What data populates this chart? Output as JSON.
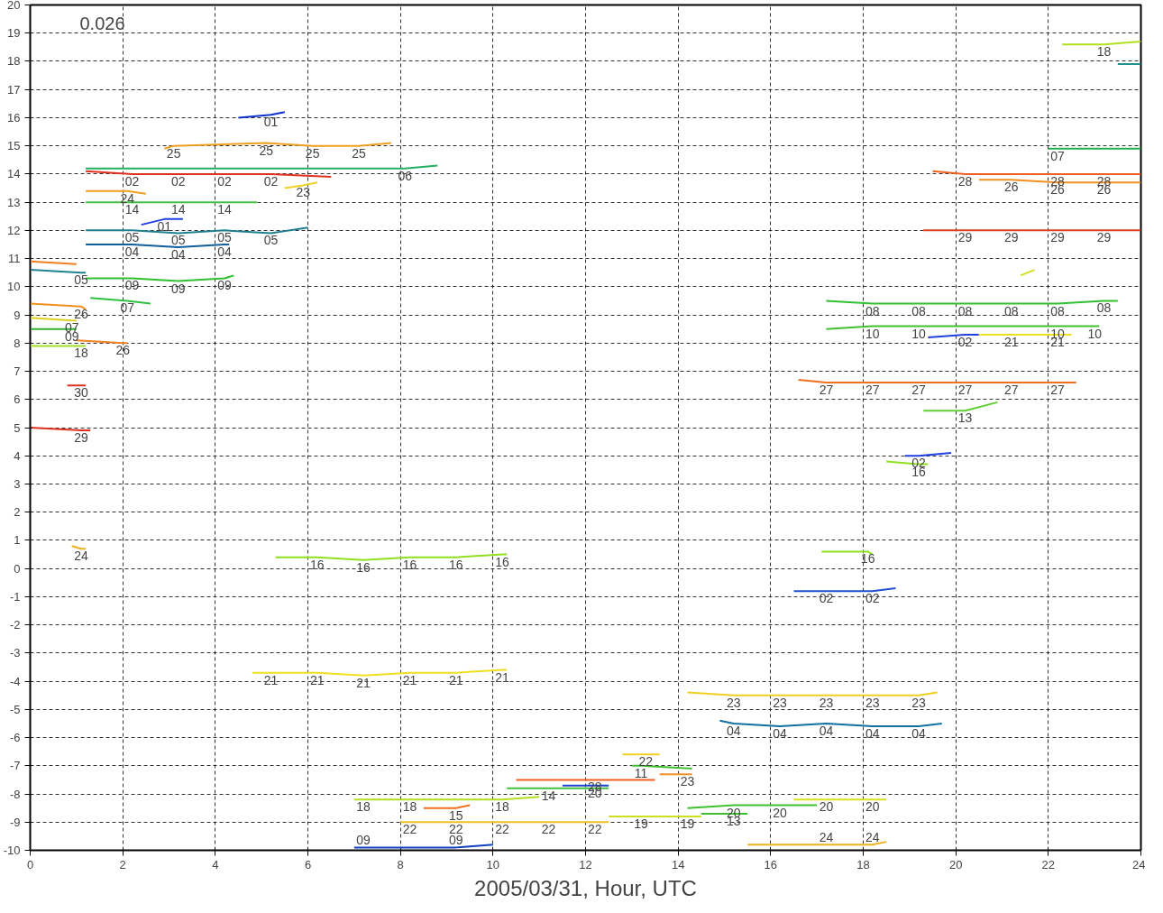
{
  "chart_data": {
    "type": "line",
    "xlabel": "2005/03/31, Hour, UTC",
    "annotations": [
      "0.026"
    ],
    "xlim": [
      0,
      24
    ],
    "ylim": [
      -10,
      20
    ],
    "xticks": [
      0,
      2,
      4,
      6,
      8,
      10,
      12,
      14,
      16,
      18,
      20,
      22,
      24
    ],
    "yticks": [
      -10,
      -9,
      -8,
      -7,
      -6,
      -5,
      -4,
      -3,
      -2,
      -1,
      0,
      1,
      2,
      3,
      4,
      5,
      6,
      7,
      8,
      9,
      10,
      11,
      12,
      13,
      14,
      15,
      16,
      17,
      18,
      19,
      20
    ],
    "grid": true,
    "line_style": "solid",
    "marker": "none",
    "series": [
      {
        "name": "01",
        "color": "#1030d0",
        "x": [
          4.5,
          5.2,
          5.5
        ],
        "values": [
          16.0,
          16.1,
          16.2
        ]
      },
      {
        "name": "25",
        "color": "#f0a020",
        "x": [
          2.9,
          3.1,
          5.1,
          6.1,
          7.1,
          7.8
        ],
        "values": [
          14.9,
          15.0,
          15.1,
          15.0,
          15.0,
          15.1
        ]
      },
      {
        "name": "06",
        "color": "#20b060",
        "x": [
          1.2,
          8.1,
          8.8
        ],
        "values": [
          14.2,
          14.2,
          14.3
        ]
      },
      {
        "name": "02",
        "color": "#e03020",
        "x": [
          1.2,
          2.2,
          3.2,
          4.2,
          5.2,
          6.5
        ],
        "values": [
          14.1,
          14.0,
          14.0,
          14.0,
          14.0,
          13.9
        ]
      },
      {
        "name": "23",
        "color": "#f0d020",
        "x": [
          5.5,
          5.9,
          6.2
        ],
        "values": [
          13.5,
          13.6,
          13.7
        ]
      },
      {
        "name": "24",
        "color": "#f0a020",
        "x": [
          1.2,
          2.1,
          2.5
        ],
        "values": [
          13.4,
          13.4,
          13.3
        ]
      },
      {
        "name": "14",
        "color": "#40c040",
        "x": [
          1.2,
          2.2,
          3.2,
          4.2,
          4.9
        ],
        "values": [
          13.0,
          13.0,
          13.0,
          13.0,
          13.0
        ]
      },
      {
        "name": "01",
        "color": "#2040e0",
        "x": [
          2.4,
          2.9,
          3.3
        ],
        "values": [
          12.2,
          12.4,
          12.4
        ]
      },
      {
        "name": "05",
        "color": "#208090",
        "x": [
          1.2,
          2.2,
          3.2,
          4.2,
          5.2,
          6.0
        ],
        "values": [
          12.0,
          12.0,
          11.9,
          12.0,
          11.9,
          12.1
        ]
      },
      {
        "name": "04",
        "color": "#1060a0",
        "x": [
          1.2,
          2.2,
          3.2,
          4.2,
          4.3
        ],
        "values": [
          11.5,
          11.5,
          11.4,
          11.5,
          11.5
        ]
      },
      {
        "name": null,
        "color": "#f08020",
        "x": [
          0,
          1.0
        ],
        "values": [
          10.9,
          10.8
        ]
      },
      {
        "name": "05",
        "color": "#208090",
        "x": [
          0,
          1.1,
          1.2
        ],
        "values": [
          10.6,
          10.5,
          10.5
        ]
      },
      {
        "name": "09",
        "color": "#30c030",
        "x": [
          1.2,
          2.2,
          3.2,
          4.2,
          4.4
        ],
        "values": [
          10.3,
          10.3,
          10.2,
          10.3,
          10.4
        ]
      },
      {
        "name": "07",
        "color": "#30c040",
        "x": [
          1.3,
          2.1,
          2.6
        ],
        "values": [
          9.6,
          9.5,
          9.4
        ]
      },
      {
        "name": "26",
        "color": "#f09020",
        "x": [
          0,
          1.1,
          1.2
        ],
        "values": [
          9.4,
          9.3,
          9.2
        ]
      },
      {
        "name": "07",
        "color": "#e0d020",
        "x": [
          0,
          0.9,
          1.0
        ],
        "values": [
          8.9,
          8.8,
          8.8
        ]
      },
      {
        "name": "09",
        "color": "#30b030",
        "x": [
          0,
          0.9,
          1.0
        ],
        "values": [
          8.5,
          8.5,
          8.5
        ]
      },
      {
        "name": "26",
        "color": "#f08020",
        "x": [
          1.0,
          2.0,
          2.1
        ],
        "values": [
          8.1,
          8.0,
          8.0
        ]
      },
      {
        "name": "18",
        "color": "#a0e020",
        "x": [
          0,
          1.1,
          1.2
        ],
        "values": [
          7.9,
          7.9,
          7.9
        ]
      },
      {
        "name": "30",
        "color": "#e03020",
        "x": [
          0.8,
          1.1,
          1.2
        ],
        "values": [
          6.5,
          6.5,
          6.5
        ]
      },
      {
        "name": "29",
        "color": "#e03020",
        "x": [
          0,
          1.1,
          1.3
        ],
        "values": [
          5.0,
          4.9,
          4.9
        ]
      },
      {
        "name": "24",
        "color": "#f0b020",
        "x": [
          0.9,
          1.1,
          1.2
        ],
        "values": [
          0.8,
          0.7,
          0.7
        ]
      },
      {
        "name": "16",
        "color": "#90e020",
        "x": [
          5.3,
          6.2,
          7.2,
          8.2,
          9.2,
          10.2,
          10.3
        ],
        "values": [
          0.4,
          0.4,
          0.3,
          0.4,
          0.4,
          0.5,
          0.5
        ]
      },
      {
        "name": "21",
        "color": "#f0e020",
        "x": [
          4.8,
          5.2,
          6.2,
          7.2,
          8.2,
          9.2,
          10.2,
          10.3
        ],
        "values": [
          -3.7,
          -3.7,
          -3.7,
          -3.8,
          -3.7,
          -3.7,
          -3.6,
          -3.6
        ]
      },
      {
        "name": "18",
        "color": "#b0e020",
        "x": [
          22.3,
          23.2,
          24
        ],
        "values": [
          18.6,
          18.6,
          18.7
        ]
      },
      {
        "name": null,
        "color": "#209090",
        "x": [
          23.5,
          24
        ],
        "values": [
          17.9,
          17.9
        ]
      },
      {
        "name": "07",
        "color": "#20b050",
        "x": [
          22.0,
          22.2,
          24
        ],
        "values": [
          14.9,
          14.9,
          14.9
        ]
      },
      {
        "name": "28",
        "color": "#f06020",
        "x": [
          19.5,
          20.2,
          22.2,
          23.2,
          24
        ],
        "values": [
          14.1,
          14.0,
          14.0,
          14.0,
          14.0
        ]
      },
      {
        "name": "26",
        "color": "#f09020",
        "x": [
          20.5,
          21.2,
          22.2,
          23.2,
          24
        ],
        "values": [
          13.8,
          13.8,
          13.7,
          13.7,
          13.7
        ]
      },
      {
        "name": "29",
        "color": "#e04020",
        "x": [
          19.3,
          20.2,
          21.2,
          22.2,
          23.2,
          24
        ],
        "values": [
          12.0,
          12.0,
          12.0,
          12.0,
          12.0,
          12.0
        ]
      },
      {
        "name": null,
        "color": "#d0e020",
        "x": [
          21.4,
          21.7
        ],
        "values": [
          10.4,
          10.6
        ]
      },
      {
        "name": "08",
        "color": "#30c030",
        "x": [
          17.2,
          18.2,
          19.2,
          20.2,
          21.2,
          22.2,
          23.2,
          23.5
        ],
        "values": [
          9.5,
          9.4,
          9.4,
          9.4,
          9.4,
          9.4,
          9.5,
          9.5
        ]
      },
      {
        "name": "10",
        "color": "#40c030",
        "x": [
          17.2,
          18.2,
          19.2,
          22.2,
          23.0,
          23.1
        ],
        "values": [
          8.5,
          8.6,
          8.6,
          8.6,
          8.6,
          8.6
        ]
      },
      {
        "name": "02",
        "color": "#2040e0",
        "x": [
          19.4,
          20.2,
          20.5
        ],
        "values": [
          8.2,
          8.3,
          8.3
        ]
      },
      {
        "name": "21",
        "color": "#f0e020",
        "x": [
          20.5,
          21.2,
          22.2,
          22.5
        ],
        "values": [
          8.3,
          8.3,
          8.3,
          8.3
        ]
      },
      {
        "name": "27",
        "color": "#f07020",
        "x": [
          16.6,
          17.2,
          18.2,
          19.2,
          20.2,
          21.2,
          22.2,
          22.6
        ],
        "values": [
          6.7,
          6.6,
          6.6,
          6.6,
          6.6,
          6.6,
          6.6,
          6.6
        ]
      },
      {
        "name": "13",
        "color": "#60d030",
        "x": [
          19.3,
          20.2,
          20.9
        ],
        "values": [
          5.6,
          5.6,
          5.9
        ]
      },
      {
        "name": "02",
        "color": "#2040e0",
        "x": [
          18.9,
          19.2,
          19.9
        ],
        "values": [
          4.0,
          4.0,
          4.1
        ]
      },
      {
        "name": "16",
        "color": "#90e020",
        "x": [
          18.5,
          19.2,
          19.4
        ],
        "values": [
          3.8,
          3.7,
          3.7
        ]
      },
      {
        "name": "16",
        "color": "#90e020",
        "x": [
          17.1,
          18.1,
          18.2
        ],
        "values": [
          0.6,
          0.6,
          0.5
        ]
      },
      {
        "name": "02",
        "color": "#2050d0",
        "x": [
          16.5,
          17.2,
          18.2,
          18.7
        ],
        "values": [
          -0.8,
          -0.8,
          -0.8,
          -0.7
        ]
      },
      {
        "name": "23",
        "color": "#f0d020",
        "x": [
          14.2,
          15.2,
          16.2,
          17.2,
          18.2,
          19.2,
          19.6
        ],
        "values": [
          -4.4,
          -4.5,
          -4.5,
          -4.5,
          -4.5,
          -4.5,
          -4.4
        ]
      },
      {
        "name": "04",
        "color": "#1070a0",
        "x": [
          14.9,
          15.2,
          16.2,
          17.2,
          18.2,
          19.2,
          19.7
        ],
        "values": [
          -5.4,
          -5.5,
          -5.6,
          -5.5,
          -5.6,
          -5.6,
          -5.5
        ]
      },
      {
        "name": "22",
        "color": "#f0d020",
        "x": [
          12.8,
          13.3,
          13.6
        ],
        "values": [
          -6.6,
          -6.6,
          -6.6
        ]
      },
      {
        "name": "11",
        "color": "#40c030",
        "x": [
          13.0,
          13.2,
          14.3
        ],
        "values": [
          -7.0,
          -7.0,
          -7.1
        ]
      },
      {
        "name": "23",
        "color": "#f09020",
        "x": [
          13.6,
          14.2,
          14.3
        ],
        "values": [
          -7.3,
          -7.3,
          -7.3
        ]
      },
      {
        "name": "28",
        "color": "#f06020",
        "x": [
          10.5,
          12.2,
          13.5
        ],
        "values": [
          -7.5,
          -7.5,
          -7.5
        ]
      },
      {
        "name": "14",
        "color": "#40c040",
        "x": [
          10.3,
          11.2,
          12.5
        ],
        "values": [
          -7.8,
          -7.8,
          -7.8
        ]
      },
      {
        "name": "20",
        "color": "#2040d0",
        "x": [
          11.5,
          12.2,
          12.5
        ],
        "values": [
          -7.7,
          -7.7,
          -7.7
        ]
      },
      {
        "name": "18",
        "color": "#b0e020",
        "x": [
          7.0,
          7.2,
          8.2,
          10.2,
          11.0
        ],
        "values": [
          -8.2,
          -8.2,
          -8.2,
          -8.2,
          -8.1
        ]
      },
      {
        "name": "15",
        "color": "#f07020",
        "x": [
          8.5,
          9.2,
          9.5
        ],
        "values": [
          -8.5,
          -8.5,
          -8.4
        ]
      },
      {
        "name": "20",
        "color": "#40c030",
        "x": [
          14.2,
          15.2,
          16.2,
          17.0
        ],
        "values": [
          -8.5,
          -8.4,
          -8.4,
          -8.4
        ]
      },
      {
        "name": "20",
        "color": "#e0e020",
        "x": [
          16.5,
          17.2,
          18.2,
          18.5
        ],
        "values": [
          -8.2,
          -8.2,
          -8.2,
          -8.2
        ]
      },
      {
        "name": "13",
        "color": "#40c030",
        "x": [
          14.5,
          15.2,
          15.5
        ],
        "values": [
          -8.7,
          -8.7,
          -8.7
        ]
      },
      {
        "name": "22",
        "color": "#f0c020",
        "x": [
          8.0,
          8.2,
          9.2,
          10.2,
          11.2,
          12.2,
          12.5
        ],
        "values": [
          -9.0,
          -9.0,
          -9.0,
          -9.0,
          -9.0,
          -9.0,
          -9.0
        ]
      },
      {
        "name": "19",
        "color": "#d0e020",
        "x": [
          12.5,
          13.2,
          14.2,
          14.5
        ],
        "values": [
          -8.8,
          -8.8,
          -8.8,
          -8.8
        ]
      },
      {
        "name": "24",
        "color": "#f0b020",
        "x": [
          15.5,
          17.2,
          18.2,
          18.5
        ],
        "values": [
          -9.8,
          -9.8,
          -9.8,
          -9.7
        ]
      },
      {
        "name": "09",
        "color": "#1040c0",
        "x": [
          7.0,
          7.2,
          9.2,
          10.0
        ],
        "values": [
          -9.9,
          -9.9,
          -9.9,
          -9.8
        ]
      }
    ]
  }
}
